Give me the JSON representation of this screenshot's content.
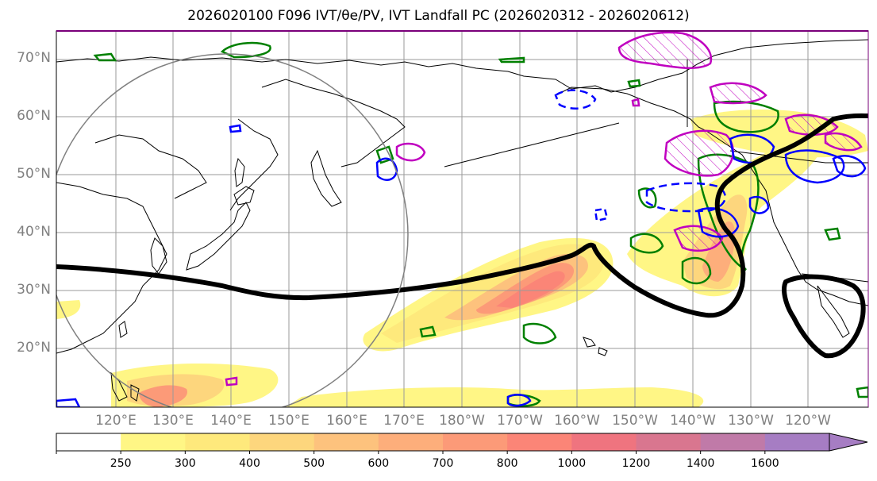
{
  "figure": {
    "title": "2026020100 F096 IVT/θe/PV, IVT Landfall PC (2026020312 - 2026020612)"
  },
  "chart_data": {
    "type": "map",
    "title": "2026020100 F096 IVT/θe/PV, IVT Landfall PC (2026020312 - 2026020612)",
    "lat_labels": [
      "70°N",
      "60°N",
      "50°N",
      "40°N",
      "30°N",
      "20°N"
    ],
    "lon_labels": [
      "120°E",
      "130°E",
      "140°E",
      "150°E",
      "160°E",
      "170°E",
      "180°W",
      "170°W",
      "160°W",
      "150°W",
      "140°W",
      "130°W",
      "120°W"
    ],
    "colorbar": {
      "levels": [
        "250",
        "300",
        "400",
        "500",
        "600",
        "700",
        "800",
        "1000",
        "1200",
        "1400",
        "1600"
      ],
      "colors": [
        "#ffffff",
        "#fff685",
        "#fee97c",
        "#fdd67d",
        "#fdc27d",
        "#fdae7b",
        "#fc9a78",
        "#fb8577",
        "#ef747f",
        "#d9768f",
        "#c07aa8",
        "#a67dc3"
      ],
      "extend": "max"
    },
    "contour_colors": {
      "ivt_landfall": "#000000",
      "theta_e": "#008000",
      "pv_positive": "#c000c0",
      "pv_negative": "#0000ff",
      "circle": "#808080"
    }
  }
}
